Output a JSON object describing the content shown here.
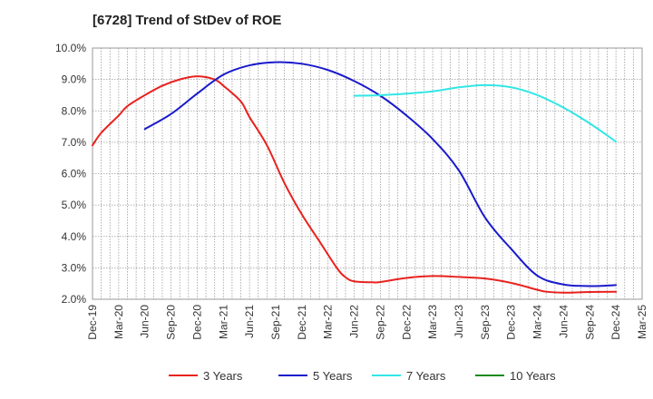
{
  "chart_data": {
    "type": "line",
    "title": "[6728]  Trend of StDev of ROE",
    "xlabel": "",
    "ylabel": "",
    "ylim": [
      2.0,
      10.0
    ],
    "yticks": [
      "10.0%",
      "9.0%",
      "8.0%",
      "7.0%",
      "6.0%",
      "5.0%",
      "4.0%",
      "3.0%",
      "2.0%"
    ],
    "yticks_values": [
      10,
      9,
      8,
      7,
      6,
      5,
      4,
      3,
      2
    ],
    "x_categories": [
      "Dec-19",
      "Mar-20",
      "Jun-20",
      "Sep-20",
      "Dec-20",
      "Mar-21",
      "Jun-21",
      "Sep-21",
      "Dec-21",
      "Mar-22",
      "Jun-22",
      "Sep-22",
      "Dec-22",
      "Mar-23",
      "Jun-23",
      "Sep-23",
      "Dec-23",
      "Mar-24",
      "Jun-24",
      "Sep-24",
      "Dec-24",
      "Mar-25"
    ],
    "grid": true,
    "legend_position": "bottom",
    "series": [
      {
        "name": "3 Years",
        "color": "#e8221e",
        "points": [
          [
            "Dec-19",
            6.9
          ],
          [
            "Jan-20",
            7.3
          ],
          [
            "Mar-20",
            7.85
          ],
          [
            "Apr-20",
            8.15
          ],
          [
            "Jun-20",
            8.5
          ],
          [
            "Aug-20",
            8.8
          ],
          [
            "Oct-20",
            9.0
          ],
          [
            "Dec-20",
            9.1
          ],
          [
            "Feb-21",
            9.0
          ],
          [
            "Mar-21",
            8.8
          ],
          [
            "May-21",
            8.3
          ],
          [
            "Jun-21",
            7.8
          ],
          [
            "Aug-21",
            6.9
          ],
          [
            "Oct-21",
            5.7
          ],
          [
            "Dec-21",
            4.7
          ],
          [
            "Feb-22",
            3.85
          ],
          [
            "Apr-22",
            3.0
          ],
          [
            "May-22",
            2.7
          ],
          [
            "Jun-22",
            2.57
          ],
          [
            "Aug-22",
            2.54
          ],
          [
            "Sep-22",
            2.55
          ],
          [
            "Dec-22",
            2.68
          ],
          [
            "Mar-23",
            2.74
          ],
          [
            "Jun-23",
            2.71
          ],
          [
            "Sep-23",
            2.66
          ],
          [
            "Dec-23",
            2.52
          ],
          [
            "Mar-24",
            2.3
          ],
          [
            "Apr-24",
            2.24
          ],
          [
            "Jun-24",
            2.21
          ],
          [
            "Sep-24",
            2.23
          ],
          [
            "Dec-24",
            2.24
          ]
        ]
      },
      {
        "name": "5 Years",
        "color": "#1a1acc",
        "points": [
          [
            "Jun-20",
            7.42
          ],
          [
            "Sep-20",
            7.9
          ],
          [
            "Dec-20",
            8.55
          ],
          [
            "Mar-21",
            9.15
          ],
          [
            "Jun-21",
            9.45
          ],
          [
            "Sep-21",
            9.55
          ],
          [
            "Dec-21",
            9.5
          ],
          [
            "Mar-22",
            9.3
          ],
          [
            "Jun-22",
            8.95
          ],
          [
            "Sep-22",
            8.48
          ],
          [
            "Dec-22",
            7.85
          ],
          [
            "Mar-23",
            7.1
          ],
          [
            "Jun-23",
            6.1
          ],
          [
            "Sep-23",
            4.6
          ],
          [
            "Dec-23",
            3.6
          ],
          [
            "Mar-24",
            2.75
          ],
          [
            "Jun-24",
            2.47
          ],
          [
            "Sep-24",
            2.42
          ],
          [
            "Dec-24",
            2.45
          ]
        ]
      },
      {
        "name": "7 Years",
        "color": "#33e6e6",
        "points": [
          [
            "Jun-22",
            8.48
          ],
          [
            "Sep-22",
            8.5
          ],
          [
            "Dec-22",
            8.55
          ],
          [
            "Mar-23",
            8.62
          ],
          [
            "Jun-23",
            8.75
          ],
          [
            "Sep-23",
            8.82
          ],
          [
            "Dec-23",
            8.75
          ],
          [
            "Mar-24",
            8.5
          ],
          [
            "Jun-24",
            8.1
          ],
          [
            "Sep-24",
            7.6
          ],
          [
            "Dec-24",
            7.02
          ]
        ]
      },
      {
        "name": "10 Years",
        "color": "#1a8a1a",
        "points": []
      }
    ]
  }
}
